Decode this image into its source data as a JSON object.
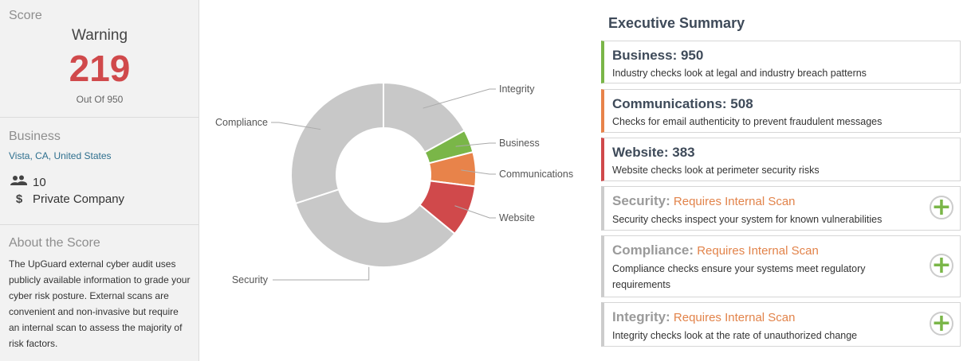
{
  "score": {
    "section_title": "Score",
    "status": "Warning",
    "value": "219",
    "max_label": "Out Of 950"
  },
  "business": {
    "section_title": "Business",
    "location": "Vista, CA, United States",
    "employees": "10",
    "company_type": "Private Company",
    "employees_icon": "users-icon",
    "company_type_icon": "dollar-icon"
  },
  "about": {
    "section_title": "About the Score",
    "text": "The UpGuard external cyber audit uses publicly available information to grade your cyber risk posture. External scans are convenient and non-invasive but require an internal scan to assess the majority of risk factors."
  },
  "chart_data": {
    "type": "pie",
    "variant": "donut",
    "slices": [
      {
        "label": "Integrity",
        "value": 17,
        "color": "#c8c8c8"
      },
      {
        "label": "Business",
        "value": 4,
        "color": "#7ab648"
      },
      {
        "label": "Communications",
        "value": 6,
        "color": "#e8834a"
      },
      {
        "label": "Website",
        "value": 9,
        "color": "#d0494b"
      },
      {
        "label": "Security",
        "value": 34,
        "color": "#c8c8c8"
      },
      {
        "label": "Compliance",
        "value": 30,
        "color": "#c8c8c8"
      }
    ],
    "legend": "none"
  },
  "summary": {
    "title": "Executive Summary",
    "cards": [
      {
        "category": "Business",
        "score": "950",
        "required": "",
        "description": "Industry checks look at legal and industry breach patterns",
        "color": "#7ab648"
      },
      {
        "category": "Communications",
        "score": "508",
        "required": "",
        "description": "Checks for email authenticity to prevent fraudulent messages",
        "color": "#e8834a"
      },
      {
        "category": "Website",
        "score": "383",
        "required": "",
        "description": "Website checks look at perimeter security risks",
        "color": "#d0494b"
      },
      {
        "category": "Security",
        "score": "",
        "required": "Requires Internal Scan",
        "description": "Security checks inspect your system for known vulnerabilities",
        "color": "#cccccc"
      },
      {
        "category": "Compliance",
        "score": "",
        "required": "Requires Internal Scan",
        "description": "Compliance checks ensure your systems meet regulatory requirements",
        "color": "#cccccc"
      },
      {
        "category": "Integrity",
        "score": "",
        "required": "Requires Internal Scan",
        "description": "Integrity checks look at the rate of unauthorized change",
        "color": "#cccccc"
      }
    ]
  }
}
